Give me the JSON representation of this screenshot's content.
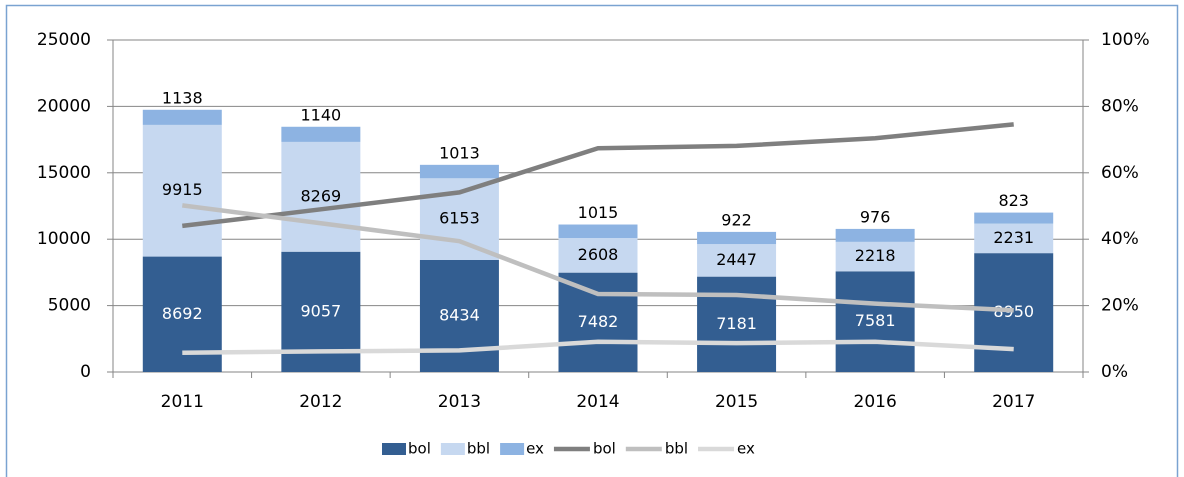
{
  "chart_data": {
    "type": "bar",
    "categories": [
      "2011",
      "2012",
      "2013",
      "2014",
      "2015",
      "2016",
      "2017"
    ],
    "series": [
      {
        "name": "bol",
        "type": "bar",
        "color": "#335e91",
        "values": [
          8692,
          9057,
          8434,
          7482,
          7181,
          7581,
          8950
        ]
      },
      {
        "name": "bbl",
        "type": "bar",
        "color": "#c6d8f0",
        "values": [
          9915,
          8269,
          6153,
          2608,
          2447,
          2218,
          2231
        ]
      },
      {
        "name": "ex",
        "type": "bar",
        "color": "#8db3e2",
        "values": [
          1138,
          1140,
          1013,
          1015,
          922,
          976,
          823
        ]
      },
      {
        "name": "bol",
        "type": "line",
        "axis": "y2",
        "color": "#7f7f7f",
        "values": [
          44.0,
          49.0,
          54.1,
          67.4,
          68.1,
          70.4,
          74.6
        ]
      },
      {
        "name": "bbl",
        "type": "line",
        "axis": "y2",
        "color": "#bfbfbf",
        "values": [
          50.2,
          44.8,
          39.4,
          23.5,
          23.2,
          20.6,
          18.6
        ]
      },
      {
        "name": "ex",
        "type": "line",
        "axis": "y2",
        "color": "#d9d9d9",
        "values": [
          5.8,
          6.2,
          6.5,
          9.1,
          8.7,
          9.1,
          6.9
        ]
      }
    ],
    "ylim": [
      0,
      25000
    ],
    "yticks": [
      0,
      5000,
      10000,
      15000,
      20000,
      25000
    ],
    "y2lim": [
      0,
      100
    ],
    "y2ticks": [
      {
        "value": 0,
        "label": "0%"
      },
      {
        "value": 20,
        "label": "20%"
      },
      {
        "value": 40,
        "label": "40%"
      },
      {
        "value": 60,
        "label": "60%"
      },
      {
        "value": 80,
        "label": "80%"
      },
      {
        "value": 100,
        "label": "100%"
      }
    ],
    "grid": true,
    "stacked": true,
    "legend": "bottom"
  }
}
